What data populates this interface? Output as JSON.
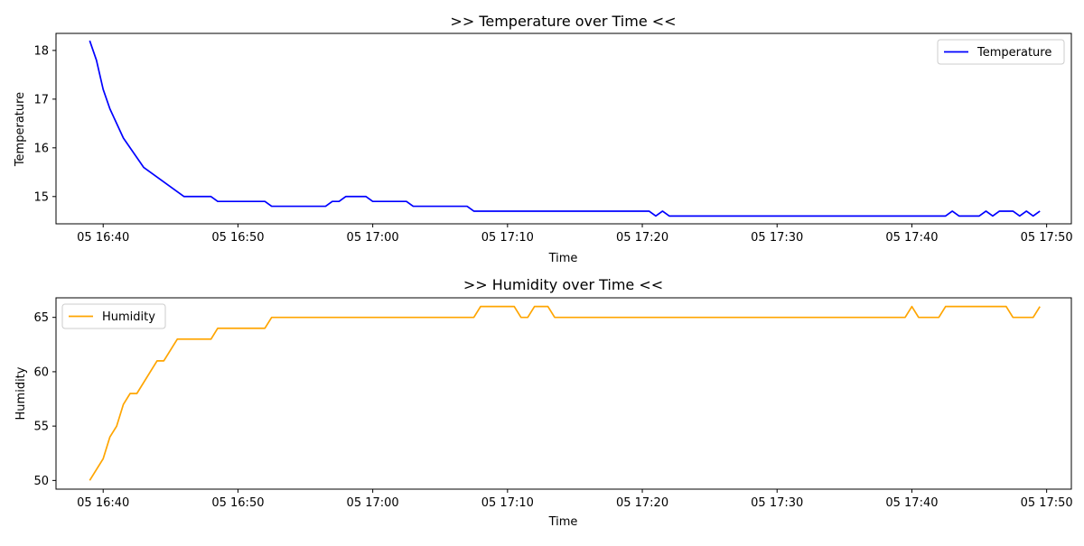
{
  "chart_data": [
    {
      "type": "line",
      "title": ">> Temperature over Time <<",
      "xlabel": "Time",
      "ylabel": "Temperature",
      "grid": false,
      "legend_position": "top-right",
      "x_ticks": [
        "05 16:40",
        "05 16:50",
        "05 17:00",
        "05 17:10",
        "05 17:20",
        "05 17:30",
        "05 17:40",
        "05 17:50"
      ],
      "y_ticks": [
        "15",
        "16",
        "17",
        "18"
      ],
      "xlim": [
        "05 16:36:30",
        "05 17:51:50"
      ],
      "ylim": [
        14.44,
        18.35
      ],
      "series": [
        {
          "name": "Temperature",
          "color": "#0000ff",
          "points": [
            [
              "05 16:39:00",
              18.2
            ],
            [
              "05 16:39:30",
              17.8
            ],
            [
              "05 16:40:00",
              17.2
            ],
            [
              "05 16:40:30",
              16.8
            ],
            [
              "05 16:41:30",
              16.2
            ],
            [
              "05 16:43:00",
              15.6
            ],
            [
              "05 16:46:00",
              15.0
            ],
            [
              "05 16:48:00",
              15.0
            ],
            [
              "05 16:48:30",
              14.9
            ],
            [
              "05 16:52:00",
              14.9
            ],
            [
              "05 16:52:30",
              14.8
            ],
            [
              "05 16:56:30",
              14.8
            ],
            [
              "05 16:57:00",
              14.9
            ],
            [
              "05 16:57:30",
              14.9
            ],
            [
              "05 16:58:00",
              15.0
            ],
            [
              "05 16:59:30",
              15.0
            ],
            [
              "05 17:00:00",
              14.9
            ],
            [
              "05 17:02:30",
              14.9
            ],
            [
              "05 17:03:00",
              14.8
            ],
            [
              "05 17:07:00",
              14.8
            ],
            [
              "05 17:07:30",
              14.7
            ],
            [
              "05 17:20:30",
              14.7
            ],
            [
              "05 17:21:00",
              14.6
            ],
            [
              "05 17:21:30",
              14.7
            ],
            [
              "05 17:22:00",
              14.6
            ],
            [
              "05 17:42:30",
              14.6
            ],
            [
              "05 17:43:00",
              14.7
            ],
            [
              "05 17:43:30",
              14.6
            ],
            [
              "05 17:45:00",
              14.6
            ],
            [
              "05 17:45:30",
              14.7
            ],
            [
              "05 17:46:00",
              14.6
            ],
            [
              "05 17:46:30",
              14.7
            ],
            [
              "05 17:47:30",
              14.7
            ],
            [
              "05 17:48:00",
              14.6
            ],
            [
              "05 17:48:30",
              14.7
            ],
            [
              "05 17:49:00",
              14.6
            ],
            [
              "05 17:49:30",
              14.7
            ]
          ]
        }
      ]
    },
    {
      "type": "line",
      "title": ">> Humidity over Time <<",
      "xlabel": "Time",
      "ylabel": "Humidity",
      "grid": false,
      "legend_position": "top-left",
      "x_ticks": [
        "05 16:40",
        "05 16:50",
        "05 17:00",
        "05 17:10",
        "05 17:20",
        "05 17:30",
        "05 17:40",
        "05 17:50"
      ],
      "y_ticks": [
        "50",
        "55",
        "60",
        "65"
      ],
      "xlim": [
        "05 16:36:30",
        "05 17:51:50"
      ],
      "ylim": [
        49.2,
        66.8
      ],
      "series": [
        {
          "name": "Humidity",
          "color": "#ffa500",
          "points": [
            [
              "05 16:39:00",
              50
            ],
            [
              "05 16:40:00",
              52
            ],
            [
              "05 16:40:30",
              54
            ],
            [
              "05 16:41:00",
              55
            ],
            [
              "05 16:41:30",
              57
            ],
            [
              "05 16:42:00",
              58
            ],
            [
              "05 16:42:30",
              58
            ],
            [
              "05 16:44:00",
              61
            ],
            [
              "05 16:44:30",
              61
            ],
            [
              "05 16:45:30",
              63
            ],
            [
              "05 16:48:00",
              63
            ],
            [
              "05 16:48:30",
              64
            ],
            [
              "05 16:52:00",
              64
            ],
            [
              "05 16:52:30",
              65
            ],
            [
              "05 17:07:30",
              65
            ],
            [
              "05 17:08:00",
              66
            ],
            [
              "05 17:10:30",
              66
            ],
            [
              "05 17:11:00",
              65
            ],
            [
              "05 17:11:30",
              65
            ],
            [
              "05 17:12:00",
              66
            ],
            [
              "05 17:13:00",
              66
            ],
            [
              "05 17:13:30",
              65
            ],
            [
              "05 17:39:30",
              65
            ],
            [
              "05 17:40:00",
              66
            ],
            [
              "05 17:40:30",
              65
            ],
            [
              "05 17:42:00",
              65
            ],
            [
              "05 17:42:30",
              66
            ],
            [
              "05 17:47:00",
              66
            ],
            [
              "05 17:47:30",
              65
            ],
            [
              "05 17:49:00",
              65
            ],
            [
              "05 17:49:30",
              66
            ]
          ]
        }
      ]
    }
  ]
}
